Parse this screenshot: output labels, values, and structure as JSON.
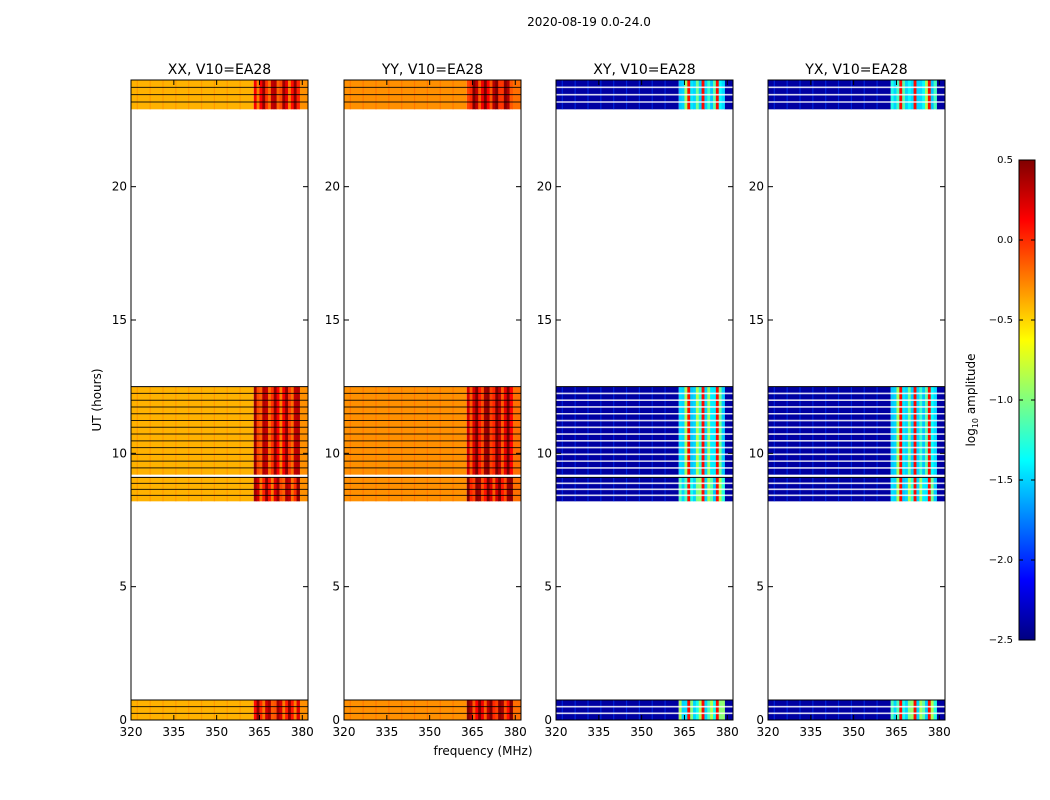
{
  "chart_data": {
    "type": "heatmap",
    "suptitle": "2020-08-19 0.0-24.0",
    "xlabel": "frequency (MHz)",
    "ylabel": "UT (hours)",
    "xlim": [
      320,
      382
    ],
    "ylim": [
      0,
      24
    ],
    "xticks": [
      320,
      335,
      350,
      365,
      380
    ],
    "yticks": [
      0,
      5,
      10,
      15,
      20
    ],
    "data_time_ranges_hours": [
      [
        0.0,
        0.75
      ],
      [
        8.2,
        9.1
      ],
      [
        9.2,
        12.5
      ],
      [
        22.9,
        24.0
      ]
    ],
    "blank_time_ranges_hours": [
      [
        0.75,
        8.2
      ],
      [
        12.5,
        22.9
      ]
    ],
    "bright_band_mhz": [
      363,
      379
    ],
    "panels": [
      {
        "title": "XX, V10=EA28",
        "polarization": "XX",
        "kind": "parallel",
        "typical_log10_amp": -0.4,
        "band_log10_amp": 0.1
      },
      {
        "title": "YY, V10=EA28",
        "polarization": "YY",
        "kind": "parallel",
        "typical_log10_amp": -0.3,
        "band_log10_amp": 0.2
      },
      {
        "title": "XY, V10=EA28",
        "polarization": "XY",
        "kind": "cross",
        "typical_log10_amp": -2.4,
        "band_log10_amp": -1.2
      },
      {
        "title": "YX, V10=EA28",
        "polarization": "YX",
        "kind": "cross",
        "typical_log10_amp": -2.4,
        "band_log10_amp": -1.2
      }
    ],
    "colorbar": {
      "label": "log10 amplitude",
      "colormap": "jet",
      "min": -2.5,
      "max": 0.5,
      "ticks": [
        0.5,
        0.0,
        -0.5,
        -1.0,
        -1.5,
        -2.0,
        -2.5
      ],
      "tick_labels": [
        "0.5",
        "0.0",
        "−0.5",
        "−1.0",
        "−1.5",
        "−2.0",
        "−2.5"
      ]
    }
  }
}
